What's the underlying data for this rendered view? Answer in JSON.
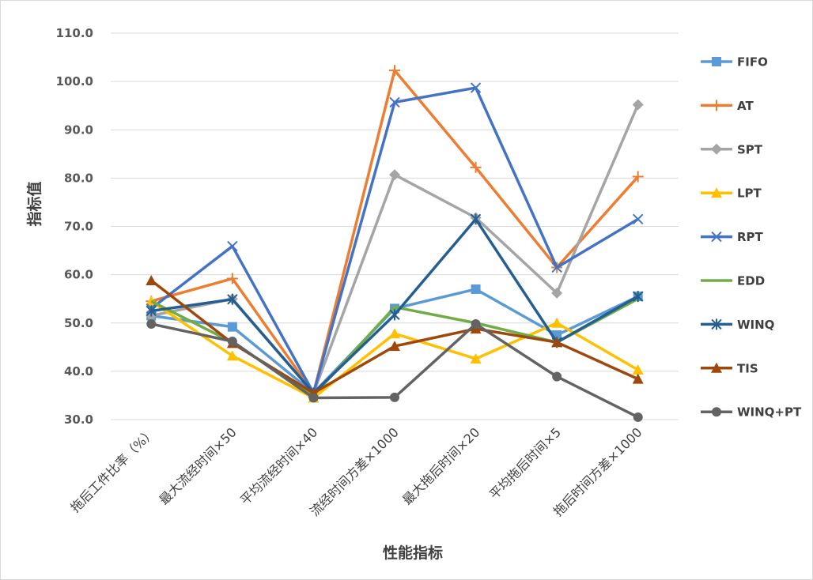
{
  "chart_data": {
    "type": "line",
    "title": "",
    "xlabel": "性能指标",
    "ylabel": "指标值",
    "ylim": [
      30,
      110
    ],
    "y_ticks": [
      "30.0",
      "40.0",
      "50.0",
      "60.0",
      "70.0",
      "80.0",
      "90.0",
      "100.0",
      "110.0"
    ],
    "grid": true,
    "legend_position": "right",
    "categories": [
      "拖后工件比率（%）",
      "最大流经时间×50",
      "平均流经时间×40",
      "流经时间方差×1000",
      "最大拖后时间×20",
      "平均拖后时间×5",
      "拖后时间方差×1000"
    ],
    "series": [
      {
        "name": "FIFO",
        "color": "#5B9BD5",
        "marker": "square",
        "values": [
          51.5,
          49.2,
          35.5,
          53.0,
          57.0,
          47.5,
          55.5
        ]
      },
      {
        "name": "AT",
        "color": "#ED7D31",
        "marker": "plus",
        "values": [
          54.5,
          59.2,
          35.5,
          102.3,
          82.2,
          61.5,
          80.3
        ]
      },
      {
        "name": "SPT",
        "color": "#A5A5A5",
        "marker": "diamond",
        "values": [
          51.5,
          55.0,
          35.5,
          80.7,
          71.8,
          56.2,
          95.2
        ]
      },
      {
        "name": "LPT",
        "color": "#FFC000",
        "marker": "triangle",
        "values": [
          54.5,
          43.2,
          34.5,
          47.8,
          42.6,
          50.0,
          40.3
        ]
      },
      {
        "name": "RPT",
        "color": "#4472C4",
        "marker": "x",
        "values": [
          53.0,
          65.9,
          35.5,
          95.7,
          98.7,
          61.5,
          71.5
        ]
      },
      {
        "name": "EDD",
        "color": "#70AD47",
        "marker": "none",
        "values": [
          54.5,
          46.0,
          35.0,
          53.3,
          50.0,
          46.0,
          55.0
        ]
      },
      {
        "name": "WINQ",
        "color": "#255E91",
        "marker": "star",
        "values": [
          52.5,
          54.9,
          35.5,
          51.7,
          71.5,
          46.0,
          55.5
        ]
      },
      {
        "name": "TIS",
        "color": "#9E480E",
        "marker": "triangle",
        "values": [
          58.8,
          45.8,
          35.5,
          45.2,
          48.8,
          46.0,
          38.4
        ]
      },
      {
        "name": "WINQ+PT",
        "color": "#636363",
        "marker": "circle",
        "values": [
          49.8,
          46.2,
          34.5,
          34.6,
          49.8,
          38.9,
          30.5
        ]
      }
    ]
  }
}
